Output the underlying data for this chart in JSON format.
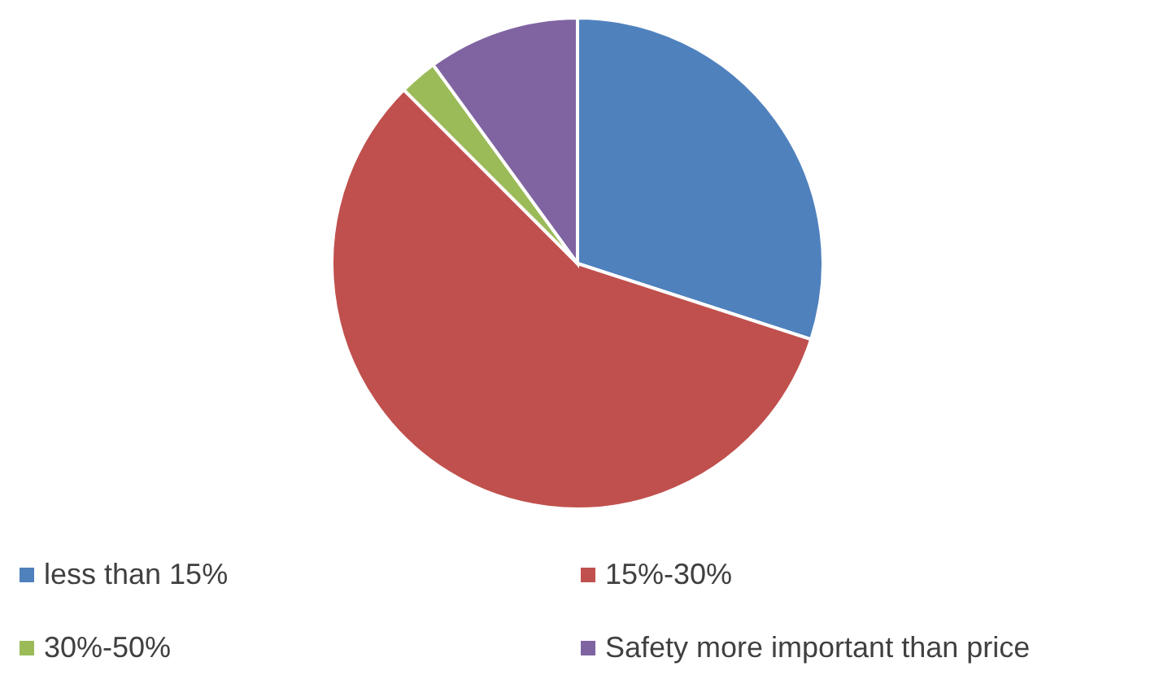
{
  "chart_data": {
    "type": "pie",
    "categories": [
      "less than 15%",
      "15%-30%",
      "30%-50%",
      "Safety more important than price"
    ],
    "values": [
      30,
      57.5,
      2.5,
      10
    ],
    "colors": [
      "#4f81bd",
      "#c0504d",
      "#9bbb59",
      "#8064a2"
    ],
    "legend": "bottom"
  }
}
